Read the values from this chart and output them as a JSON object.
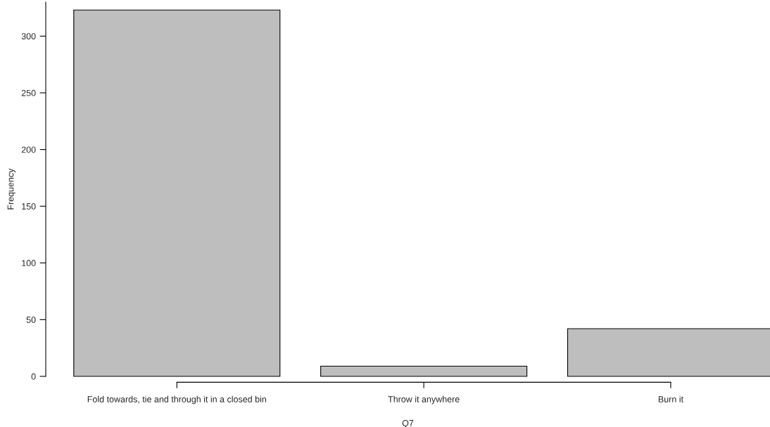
{
  "chart_data": {
    "type": "bar",
    "xlabel": "Q7",
    "ylabel": "Frequency",
    "categories": [
      "Fold towards, tie and through it in a closed bin",
      "Throw it anywhere",
      "Burn it"
    ],
    "values": [
      323,
      9,
      42
    ],
    "color": "#bebebe",
    "ylim": [
      0,
      330
    ],
    "yticks": [
      0,
      50,
      100,
      150,
      200,
      250,
      300
    ],
    "grid": false
  }
}
